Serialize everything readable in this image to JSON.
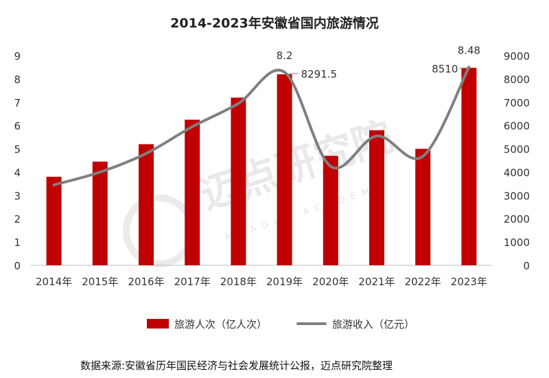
{
  "chart_data": {
    "type": "bar",
    "title": "2014-2023年安徽省国内旅游情况",
    "categories": [
      "2014年",
      "2015年",
      "2016年",
      "2017年",
      "2018年",
      "2019年",
      "2020年",
      "2021年",
      "2022年",
      "2023年"
    ],
    "series": [
      {
        "name": "旅游人次（亿人次）",
        "type": "bar",
        "axis": "left",
        "color": "#c00000",
        "values": [
          3.8,
          4.45,
          5.2,
          6.25,
          7.2,
          8.2,
          4.7,
          5.8,
          5.0,
          8.48
        ]
      },
      {
        "name": "旅游收入（亿元）",
        "type": "line",
        "axis": "right",
        "color": "#7f7f7f",
        "values": [
          3450,
          4000,
          4800,
          5950,
          6950,
          8291.5,
          4250,
          5550,
          4680,
          8510
        ]
      }
    ],
    "y_left": {
      "min": 0,
      "max": 9,
      "ticks": [
        "0",
        "1",
        "2",
        "3",
        "4",
        "5",
        "6",
        "7",
        "8",
        "9"
      ]
    },
    "y_right": {
      "min": 0,
      "max": 9000,
      "ticks": [
        "0",
        "1000",
        "2000",
        "3000",
        "4000",
        "5000",
        "6000",
        "7000",
        "8000",
        "9000"
      ]
    },
    "data_labels": {
      "bar_2019": "8.2",
      "bar_2023": "8.48",
      "line_2019": "8291.5",
      "line_2023": "8510"
    },
    "label_color": "#c55a11",
    "legend_position": "bottom",
    "grid": false
  },
  "watermark": {
    "text": "迈点研究院",
    "subtext": "MEADIN ACADEMY"
  },
  "source": "数据来源:安徽省历年国民经济与社会发展统计公报，迈点研究院整理"
}
